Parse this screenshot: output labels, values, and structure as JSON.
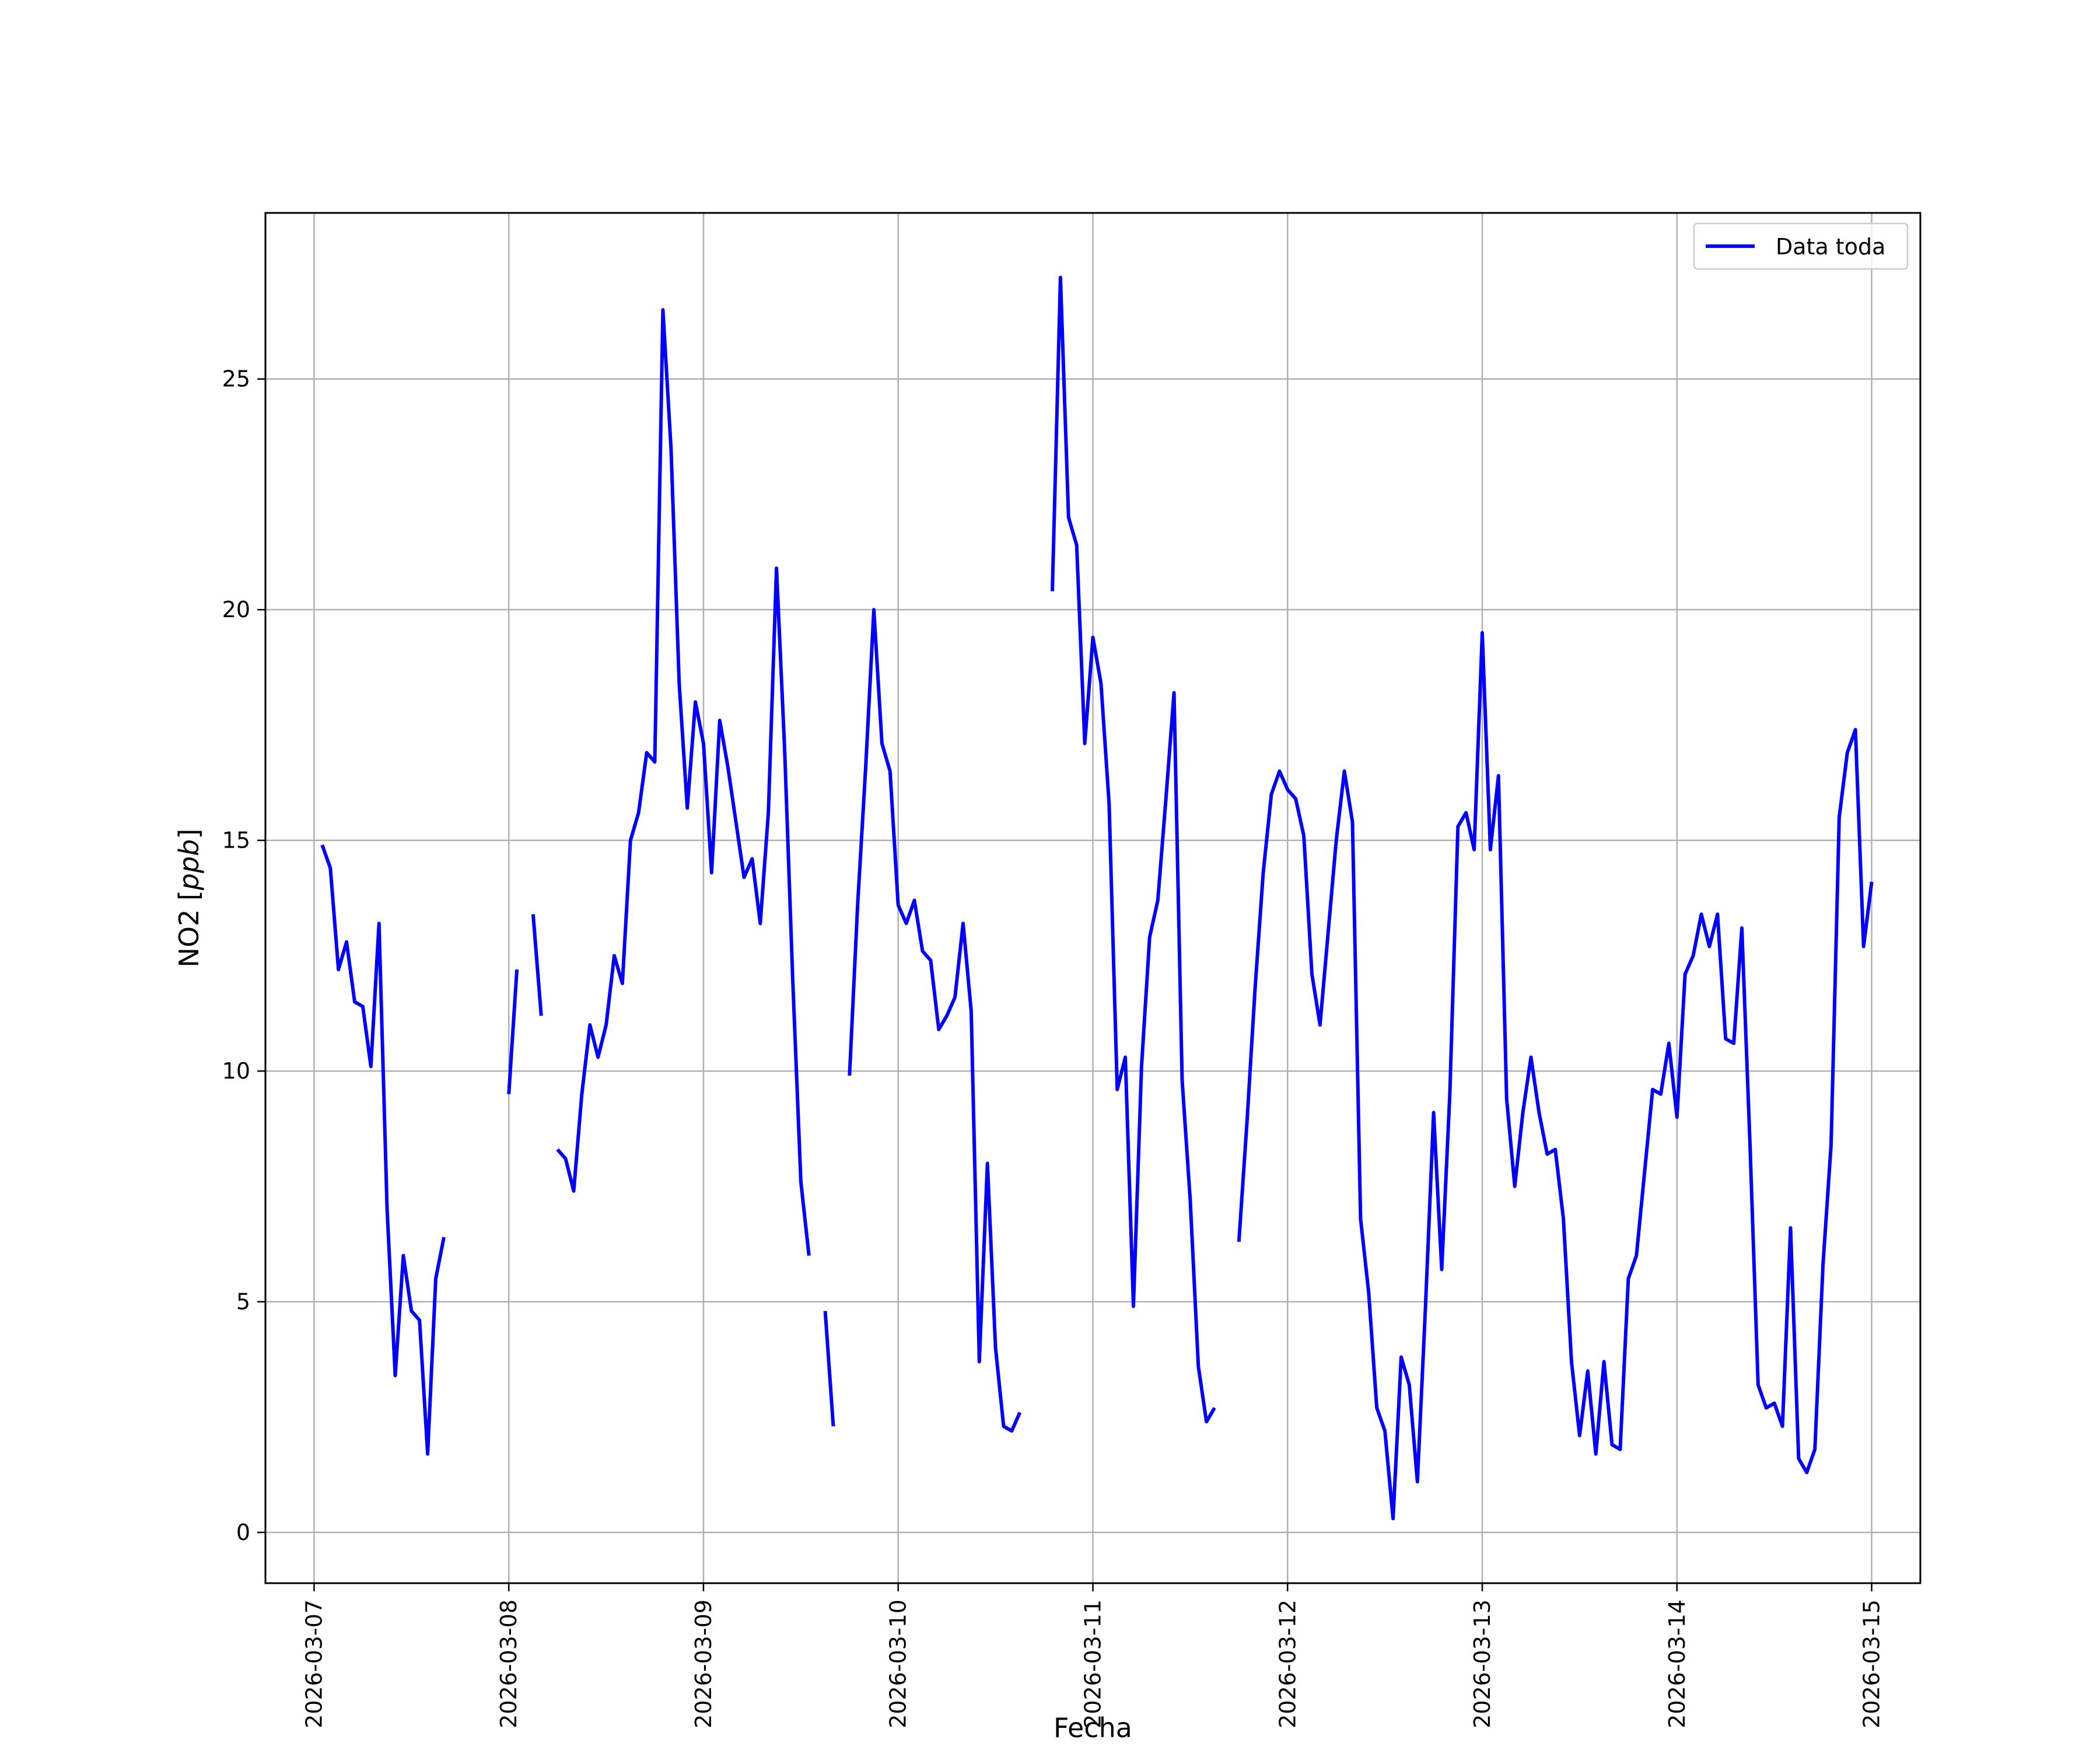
{
  "chart_data": {
    "type": "line",
    "title": "",
    "xlabel": "Fecha",
    "ylabel_main": "NO2 [",
    "ylabel_unit": "ppb",
    "ylabel_close": "]",
    "xlim": [
      "2026-03-06T18:00",
      "2026-03-15T06:00"
    ],
    "ylim": [
      -1.1,
      28.6
    ],
    "x_tick_labels": [
      "2026-03-07",
      "2026-03-08",
      "2026-03-09",
      "2026-03-10",
      "2026-03-11",
      "2026-03-12",
      "2026-03-13",
      "2026-03-14",
      "2026-03-15"
    ],
    "y_ticks": [
      0,
      5,
      10,
      15,
      20,
      25
    ],
    "y_tick_labels": [
      "0",
      "5",
      "10",
      "15",
      "20",
      "25"
    ],
    "grid": true,
    "legend_position": "top-right",
    "series": [
      {
        "name": "Data toda",
        "color": "#0000ff",
        "segments": [
          [
            [
              "2026-03-07T01:00",
              14.9
            ],
            [
              "2026-03-07T02:00",
              14.4
            ],
            [
              "2026-03-07T03:00",
              12.2
            ],
            [
              "2026-03-07T04:00",
              12.8
            ],
            [
              "2026-03-07T05:00",
              11.5
            ],
            [
              "2026-03-07T06:00",
              11.4
            ],
            [
              "2026-03-07T07:00",
              10.1
            ],
            [
              "2026-03-07T08:00",
              13.2
            ],
            [
              "2026-03-07T09:00",
              7.0
            ],
            [
              "2026-03-07T10:00",
              3.4
            ],
            [
              "2026-03-07T11:00",
              6.0
            ],
            [
              "2026-03-07T12:00",
              4.8
            ],
            [
              "2026-03-07T13:00",
              4.6
            ],
            [
              "2026-03-07T14:00",
              1.7
            ],
            [
              "2026-03-07T15:00",
              5.5
            ],
            [
              "2026-03-07T16:00",
              6.4
            ]
          ],
          [
            [
              "2026-03-08T00:00",
              9.5
            ],
            [
              "2026-03-08T01:00",
              12.2
            ]
          ],
          [
            [
              "2026-03-08T03:00",
              13.4
            ],
            [
              "2026-03-08T04:00",
              11.2
            ]
          ],
          [
            [
              "2026-03-08T06:00",
              8.3
            ],
            [
              "2026-03-08T07:00",
              8.1
            ],
            [
              "2026-03-08T08:00",
              7.4
            ],
            [
              "2026-03-08T09:00",
              9.5
            ],
            [
              "2026-03-08T10:00",
              11.0
            ],
            [
              "2026-03-08T11:00",
              10.3
            ],
            [
              "2026-03-08T12:00",
              11.0
            ],
            [
              "2026-03-08T13:00",
              12.5
            ],
            [
              "2026-03-08T14:00",
              11.9
            ],
            [
              "2026-03-08T15:00",
              15.0
            ],
            [
              "2026-03-08T16:00",
              15.6
            ],
            [
              "2026-03-08T17:00",
              16.9
            ],
            [
              "2026-03-08T18:00",
              16.7
            ],
            [
              "2026-03-08T19:00",
              26.5
            ],
            [
              "2026-03-08T20:00",
              23.5
            ],
            [
              "2026-03-08T21:00",
              18.4
            ],
            [
              "2026-03-08T22:00",
              15.7
            ],
            [
              "2026-03-08T23:00",
              18.0
            ],
            [
              "2026-03-09T00:00",
              17.1
            ],
            [
              "2026-03-09T01:00",
              14.3
            ],
            [
              "2026-03-09T02:00",
              17.6
            ],
            [
              "2026-03-09T03:00",
              16.6
            ],
            [
              "2026-03-09T04:00",
              15.4
            ],
            [
              "2026-03-09T05:00",
              14.2
            ],
            [
              "2026-03-09T06:00",
              14.6
            ],
            [
              "2026-03-09T07:00",
              13.2
            ],
            [
              "2026-03-09T08:00",
              15.6
            ],
            [
              "2026-03-09T09:00",
              20.9
            ],
            [
              "2026-03-09T10:00",
              17.0
            ],
            [
              "2026-03-09T11:00",
              12.0
            ],
            [
              "2026-03-09T12:00",
              7.6
            ],
            [
              "2026-03-09T13:00",
              6.0
            ]
          ],
          [
            [
              "2026-03-09T15:00",
              4.8
            ],
            [
              "2026-03-09T16:00",
              2.3
            ]
          ],
          [
            [
              "2026-03-09T18:00",
              9.9
            ],
            [
              "2026-03-09T19:00",
              13.6
            ],
            [
              "2026-03-09T20:00",
              16.6
            ],
            [
              "2026-03-09T21:00",
              20.0
            ],
            [
              "2026-03-09T22:00",
              17.1
            ],
            [
              "2026-03-09T23:00",
              16.5
            ],
            [
              "2026-03-10T00:00",
              13.6
            ],
            [
              "2026-03-10T01:00",
              13.2
            ],
            [
              "2026-03-10T02:00",
              13.7
            ],
            [
              "2026-03-10T03:00",
              12.6
            ],
            [
              "2026-03-10T04:00",
              12.4
            ],
            [
              "2026-03-10T05:00",
              10.9
            ],
            [
              "2026-03-10T06:00",
              11.2
            ],
            [
              "2026-03-10T07:00",
              11.6
            ],
            [
              "2026-03-10T08:00",
              13.2
            ],
            [
              "2026-03-10T09:00",
              11.3
            ],
            [
              "2026-03-10T10:00",
              3.7
            ],
            [
              "2026-03-10T11:00",
              8.0
            ],
            [
              "2026-03-10T12:00",
              4.0
            ],
            [
              "2026-03-10T13:00",
              2.3
            ],
            [
              "2026-03-10T14:00",
              2.2
            ],
            [
              "2026-03-10T15:00",
              2.6
            ]
          ],
          [
            [
              "2026-03-10T19:00",
              20.4
            ],
            [
              "2026-03-10T20:00",
              27.2
            ],
            [
              "2026-03-10T21:00",
              22.0
            ],
            [
              "2026-03-10T22:00",
              21.4
            ],
            [
              "2026-03-10T23:00",
              17.1
            ],
            [
              "2026-03-11T00:00",
              19.4
            ],
            [
              "2026-03-11T01:00",
              18.4
            ],
            [
              "2026-03-11T02:00",
              15.8
            ],
            [
              "2026-03-11T03:00",
              9.6
            ],
            [
              "2026-03-11T04:00",
              10.3
            ],
            [
              "2026-03-11T05:00",
              4.9
            ],
            [
              "2026-03-11T06:00",
              10.1
            ],
            [
              "2026-03-11T07:00",
              12.9
            ],
            [
              "2026-03-11T08:00",
              13.7
            ],
            [
              "2026-03-11T09:00",
              15.9
            ],
            [
              "2026-03-11T10:00",
              18.2
            ],
            [
              "2026-03-11T11:00",
              9.8
            ],
            [
              "2026-03-11T12:00",
              7.2
            ],
            [
              "2026-03-11T13:00",
              3.6
            ],
            [
              "2026-03-11T14:00",
              2.4
            ],
            [
              "2026-03-11T15:00",
              2.7
            ]
          ],
          [
            [
              "2026-03-11T18:00",
              6.3
            ],
            [
              "2026-03-11T19:00",
              8.9
            ],
            [
              "2026-03-11T20:00",
              11.8
            ],
            [
              "2026-03-11T21:00",
              14.3
            ],
            [
              "2026-03-11T22:00",
              16.0
            ],
            [
              "2026-03-11T23:00",
              16.5
            ],
            [
              "2026-03-12T00:00",
              16.1
            ],
            [
              "2026-03-12T01:00",
              15.9
            ],
            [
              "2026-03-12T02:00",
              15.1
            ],
            [
              "2026-03-12T03:00",
              12.1
            ],
            [
              "2026-03-12T04:00",
              11.0
            ],
            [
              "2026-03-12T05:00",
              13.0
            ],
            [
              "2026-03-12T06:00",
              15.0
            ],
            [
              "2026-03-12T07:00",
              16.5
            ],
            [
              "2026-03-12T08:00",
              15.4
            ],
            [
              "2026-03-12T09:00",
              6.8
            ],
            [
              "2026-03-12T10:00",
              5.2
            ],
            [
              "2026-03-12T11:00",
              2.7
            ],
            [
              "2026-03-12T12:00",
              2.2
            ],
            [
              "2026-03-12T13:00",
              0.3
            ],
            [
              "2026-03-12T14:00",
              3.8
            ],
            [
              "2026-03-12T15:00",
              3.2
            ],
            [
              "2026-03-12T16:00",
              1.1
            ],
            [
              "2026-03-12T17:00",
              4.9
            ],
            [
              "2026-03-12T18:00",
              9.1
            ],
            [
              "2026-03-12T19:00",
              5.7
            ],
            [
              "2026-03-12T20:00",
              9.5
            ],
            [
              "2026-03-12T21:00",
              15.3
            ],
            [
              "2026-03-12T22:00",
              15.6
            ],
            [
              "2026-03-12T23:00",
              14.8
            ],
            [
              "2026-03-13T00:00",
              19.5
            ],
            [
              "2026-03-13T01:00",
              14.8
            ],
            [
              "2026-03-13T02:00",
              16.4
            ],
            [
              "2026-03-13T03:00",
              9.4
            ],
            [
              "2026-03-13T04:00",
              7.5
            ],
            [
              "2026-03-13T05:00",
              9.1
            ],
            [
              "2026-03-13T06:00",
              10.3
            ],
            [
              "2026-03-13T07:00",
              9.1
            ],
            [
              "2026-03-13T08:00",
              8.2
            ],
            [
              "2026-03-13T09:00",
              8.3
            ],
            [
              "2026-03-13T10:00",
              6.8
            ],
            [
              "2026-03-13T11:00",
              3.7
            ],
            [
              "2026-03-13T12:00",
              2.1
            ],
            [
              "2026-03-13T13:00",
              3.5
            ],
            [
              "2026-03-13T14:00",
              1.7
            ],
            [
              "2026-03-13T15:00",
              3.7
            ],
            [
              "2026-03-13T16:00",
              1.9
            ],
            [
              "2026-03-13T17:00",
              1.8
            ],
            [
              "2026-03-13T18:00",
              5.5
            ],
            [
              "2026-03-13T19:00",
              6.0
            ],
            [
              "2026-03-13T20:00",
              7.8
            ],
            [
              "2026-03-13T21:00",
              9.6
            ],
            [
              "2026-03-13T22:00",
              9.5
            ],
            [
              "2026-03-13T23:00",
              10.6
            ],
            [
              "2026-03-14T00:00",
              9.0
            ],
            [
              "2026-03-14T01:00",
              12.1
            ],
            [
              "2026-03-14T02:00",
              12.5
            ],
            [
              "2026-03-14T03:00",
              13.4
            ],
            [
              "2026-03-14T04:00",
              12.7
            ],
            [
              "2026-03-14T05:00",
              13.4
            ],
            [
              "2026-03-14T06:00",
              10.7
            ],
            [
              "2026-03-14T07:00",
              10.6
            ],
            [
              "2026-03-14T08:00",
              13.1
            ],
            [
              "2026-03-14T09:00",
              8.4
            ],
            [
              "2026-03-14T10:00",
              3.2
            ],
            [
              "2026-03-14T11:00",
              2.7
            ],
            [
              "2026-03-14T12:00",
              2.8
            ],
            [
              "2026-03-14T13:00",
              2.3
            ],
            [
              "2026-03-14T14:00",
              6.6
            ],
            [
              "2026-03-14T15:00",
              1.6
            ],
            [
              "2026-03-14T16:00",
              1.3
            ],
            [
              "2026-03-14T17:00",
              1.8
            ],
            [
              "2026-03-14T18:00",
              5.8
            ],
            [
              "2026-03-14T19:00",
              8.4
            ],
            [
              "2026-03-14T20:00",
              15.5
            ],
            [
              "2026-03-14T21:00",
              16.9
            ],
            [
              "2026-03-14T22:00",
              17.4
            ],
            [
              "2026-03-14T23:00",
              12.7
            ],
            [
              "2026-03-15T00:00",
              14.1
            ]
          ]
        ]
      }
    ]
  }
}
